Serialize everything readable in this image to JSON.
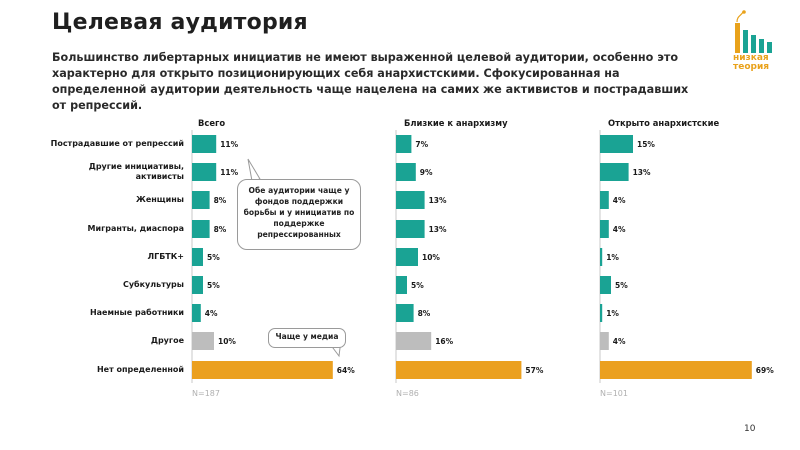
{
  "header": {
    "title": "Целевая аудитория",
    "lead": "Большинство либертарных инициатив не имеют выраженной целевой аудитории, особенно это характерно для открыто позиционирующих себя анархистскими. Сфокусированная на определенной аудитории деятельность чаще нацелена на самих же активистов и пострадавших от репрессий."
  },
  "logo": {
    "line1": "низкая",
    "line2": "теория"
  },
  "page_number": "10",
  "callouts": {
    "audiences": "Обе аудитории чаще у фондов поддержки борьбы и у инициатив по поддержке репрессированных",
    "media": "Чаще у медиа"
  },
  "colors": {
    "teal": "#1aa394",
    "gray": "#bdbdbd",
    "orange": "#eba01f"
  },
  "chart_data": {
    "type": "bar",
    "orientation": "horizontal",
    "categories": [
      "Пострадавшие от репрессий",
      "Другие инициативы, активисты",
      "Женщины",
      "Мигранты, диаспора",
      "ЛГБТК+",
      "Субкультуры",
      "Наемные работники",
      "Другое",
      "Нет определенной"
    ],
    "category_lines": [
      [
        "Пострадавшие от репрессий"
      ],
      [
        "Другие инициативы,",
        "активисты"
      ],
      [
        "Женщины"
      ],
      [
        "Мигранты, диаспора"
      ],
      [
        "ЛГБТК+"
      ],
      [
        "Субкультуры"
      ],
      [
        "Наемные работники"
      ],
      [
        "Другое"
      ],
      [
        "Нет определенной"
      ]
    ],
    "bar_colors": [
      "teal",
      "teal",
      "teal",
      "teal",
      "teal",
      "teal",
      "teal",
      "gray",
      "orange"
    ],
    "unit": "%",
    "series": [
      {
        "name": "Всего",
        "values": [
          11,
          11,
          8,
          8,
          5,
          5,
          4,
          10,
          64
        ],
        "n": "N=187"
      },
      {
        "name": "Близкие к анархизму",
        "values": [
          7,
          9,
          13,
          13,
          10,
          5,
          8,
          16,
          57
        ],
        "n": "N=86"
      },
      {
        "name": "Открыто анархистские",
        "values": [
          15,
          13,
          4,
          4,
          1,
          5,
          1,
          4,
          69
        ],
        "n": "N=101"
      }
    ]
  }
}
